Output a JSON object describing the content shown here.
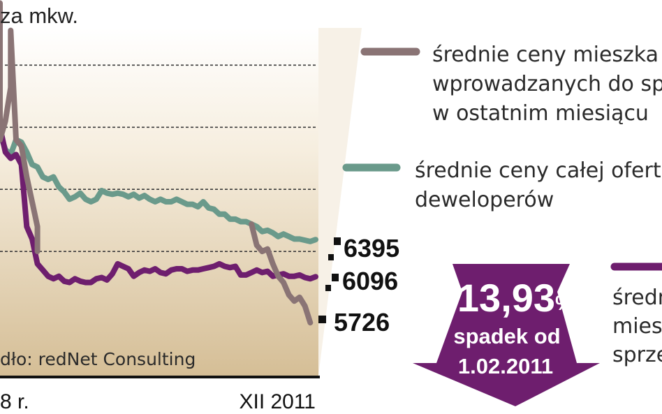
{
  "chart_data": {
    "type": "line",
    "ylabel": "za mkw.",
    "x_start_label": "8 r.",
    "x_end_label": "XII 2011",
    "source": "dło: redNet Consulting",
    "n_points": 60,
    "ylim": [
      5300,
      8100
    ],
    "grid": true,
    "legend_position": "right",
    "series": [
      {
        "name": "średnie ceny mieszka wprowadzanych do sp w ostatnim miesiącu",
        "legend_lines": [
          "średnie ceny mieszka",
          "wprowadzanych do sp",
          "w ostatnim miesiącu"
        ],
        "color": "#8a7475",
        "end_value": 5726,
        "end_label": "5726",
        "segments": [
          [
            [
              0,
              8300
            ],
            [
              0,
              7200
            ],
            [
              1,
              7350
            ],
            [
              2,
              7620
            ],
            [
              2,
              8080
            ],
            [
              3,
              7200
            ],
            [
              4,
              7150
            ],
            [
              5,
              6900
            ],
            [
              6,
              6700
            ],
            [
              7,
              6500
            ],
            [
              7,
              6300
            ]
          ],
          [
            [
              47,
              6520
            ],
            [
              48,
              6350
            ],
            [
              49,
              6300
            ],
            [
              50,
              6320
            ],
            [
              51,
              6200
            ],
            [
              52,
              6100
            ],
            [
              53,
              6050
            ],
            [
              54,
              5950
            ],
            [
              55,
              5900
            ],
            [
              56,
              5930
            ],
            [
              57,
              5860
            ],
            [
              58,
              5726
            ]
          ]
        ]
      },
      {
        "name": "średnie ceny całej oferty deweloperów",
        "legend_lines": [
          "średnie ceny całej ofert",
          "deweloperów"
        ],
        "color": "#6a9a8b",
        "end_value": 6395,
        "end_label": "6395",
        "x": [
          0,
          1,
          2,
          3,
          4,
          5,
          6,
          7,
          8,
          9,
          10,
          11,
          12,
          13,
          14,
          15,
          16,
          17,
          18,
          19,
          20,
          21,
          22,
          23,
          24,
          25,
          26,
          27,
          28,
          29,
          30,
          31,
          32,
          33,
          34,
          35,
          36,
          37,
          38,
          39,
          40,
          41,
          42,
          43,
          44,
          45,
          46,
          47,
          48,
          49,
          50,
          51,
          52,
          53,
          54,
          55,
          56,
          57,
          58,
          59
        ],
        "values": [
          7250,
          7120,
          7080,
          7200,
          7180,
          7100,
          7000,
          6980,
          6900,
          6880,
          6900,
          6820,
          6780,
          6720,
          6740,
          6770,
          6720,
          6700,
          6720,
          6790,
          6770,
          6760,
          6770,
          6760,
          6740,
          6760,
          6730,
          6750,
          6720,
          6700,
          6720,
          6700,
          6700,
          6720,
          6700,
          6680,
          6680,
          6660,
          6700,
          6650,
          6640,
          6600,
          6600,
          6560,
          6560,
          6540,
          6540,
          6520,
          6500,
          6460,
          6470,
          6450,
          6420,
          6440,
          6420,
          6400,
          6400,
          6390,
          6380,
          6395
        ]
      },
      {
        "name": "średn mies sprze",
        "legend_lines": [
          "średn",
          "mies",
          "sprze"
        ],
        "color": "#6e1e6e",
        "end_value": 6096,
        "end_label": "6096",
        "x": [
          0,
          1,
          2,
          3,
          4,
          5,
          6,
          7,
          8,
          9,
          10,
          11,
          12,
          13,
          14,
          15,
          16,
          17,
          18,
          19,
          20,
          21,
          22,
          23,
          24,
          25,
          26,
          27,
          28,
          29,
          30,
          31,
          32,
          33,
          34,
          35,
          36,
          37,
          38,
          39,
          40,
          41,
          42,
          43,
          44,
          45,
          46,
          47,
          48,
          49,
          50,
          51,
          52,
          53,
          54,
          55,
          56,
          57,
          58,
          59
        ],
        "values": [
          7300,
          7100,
          7050,
          7080,
          7000,
          6500,
          6400,
          6200,
          6150,
          6100,
          6080,
          6100,
          6060,
          6050,
          6080,
          6060,
          6050,
          6050,
          6080,
          6090,
          6070,
          6120,
          6200,
          6180,
          6160,
          6100,
          6130,
          6150,
          6140,
          6160,
          6130,
          6120,
          6150,
          6160,
          6160,
          6140,
          6150,
          6150,
          6160,
          6170,
          6180,
          6200,
          6180,
          6170,
          6180,
          6110,
          6110,
          6130,
          6150,
          6130,
          6140,
          6100,
          6110,
          6120,
          6100,
          6100,
          6110,
          6090,
          6080,
          6096
        ]
      }
    ],
    "annotation": {
      "value": "-13,93",
      "unit": "%",
      "line2": "spadek od",
      "line3": "1.02.2011",
      "color": "#6e1e6e"
    }
  }
}
